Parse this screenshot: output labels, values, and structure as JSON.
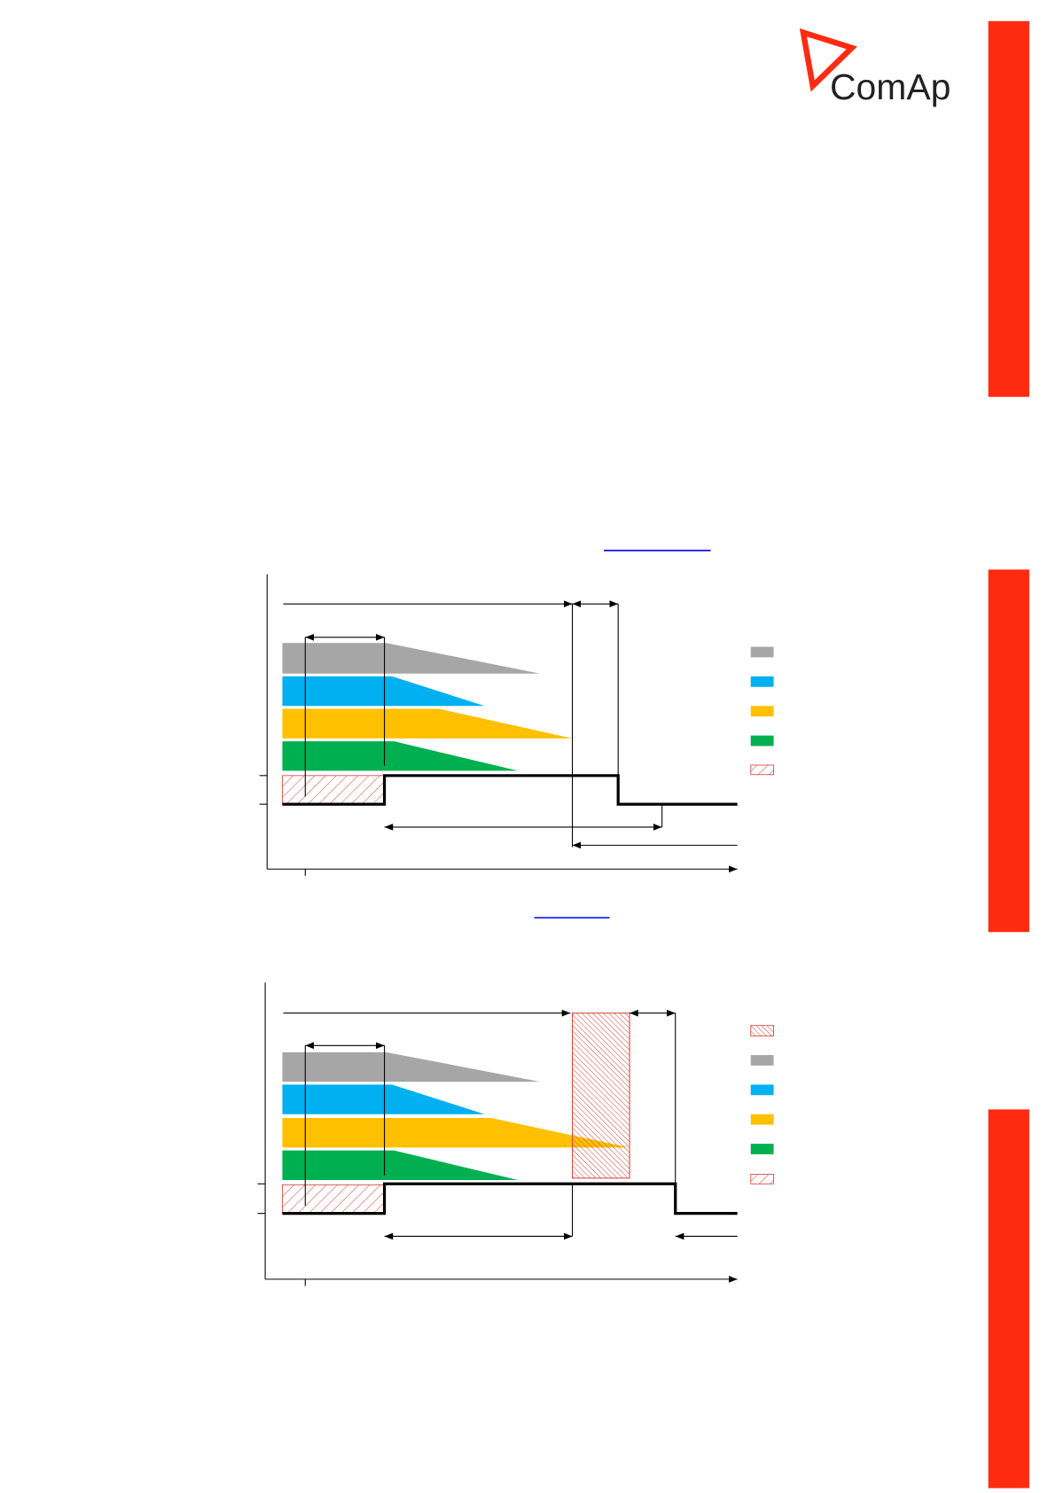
{
  "header": {
    "logo": "ComAp"
  }
}
